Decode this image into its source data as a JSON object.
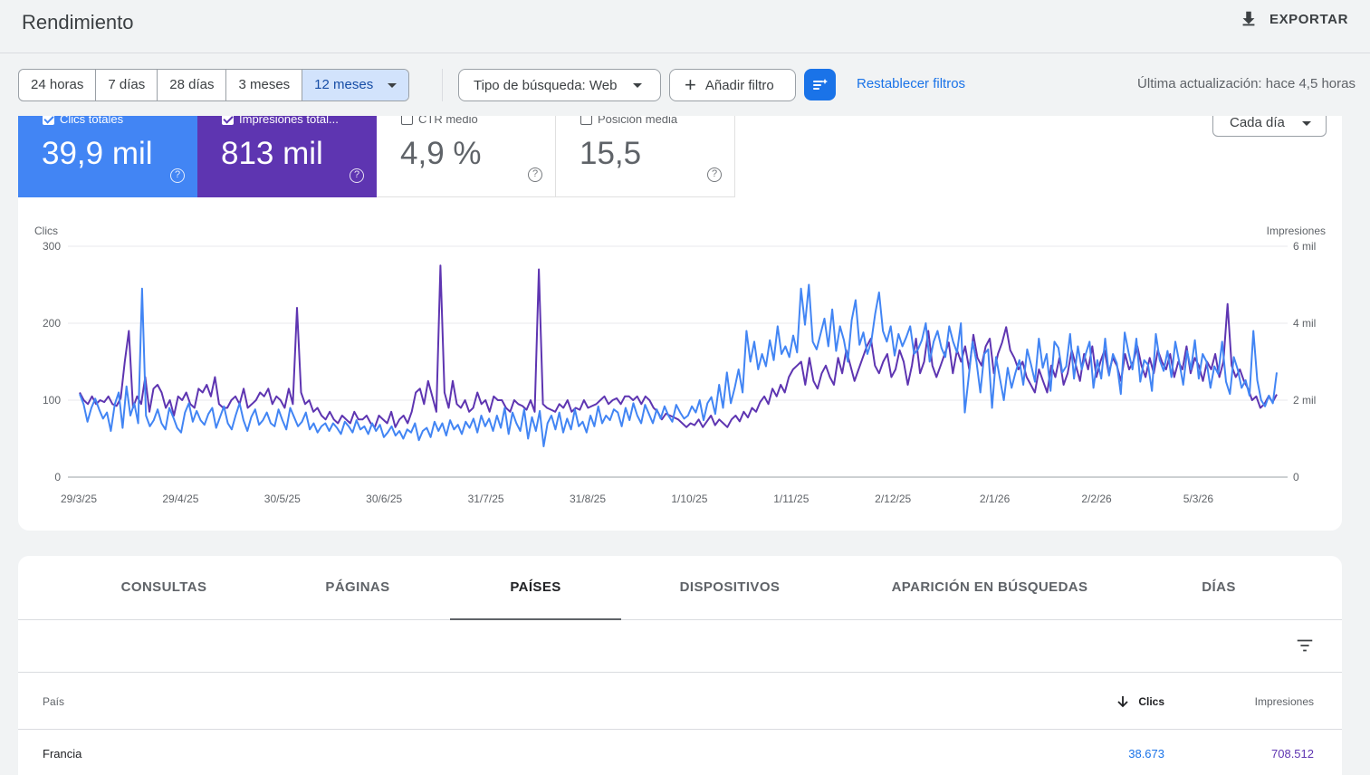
{
  "header": {
    "title": "Rendimiento",
    "export_label": "EXPORTAR"
  },
  "filters": {
    "date_ranges": [
      "24 horas",
      "7 días",
      "28 días",
      "3 meses",
      "12 meses"
    ],
    "active_range": "12 meses",
    "search_type": "Tipo de búsqueda: Web",
    "add_filter": "Añadir filtro",
    "reset": "Restablecer filtros",
    "last_update": "Última actualización: hace 4,5 horas"
  },
  "metrics": {
    "clicks": {
      "label": "Clics totales",
      "value": "39,9 mil",
      "checked": true,
      "color": "#4285f4"
    },
    "impressions": {
      "label": "Impresiones total...",
      "value": "813 mil",
      "checked": true,
      "color": "#5e35b1"
    },
    "ctr": {
      "label": "CTR medio",
      "value": "4,9 %",
      "checked": false
    },
    "position": {
      "label": "Posición media",
      "value": "15,5",
      "checked": false
    }
  },
  "period_select": "Cada día",
  "chart_data": {
    "type": "line",
    "ylabel": "Clics",
    "y2label": "Impresiones",
    "ylim": [
      0,
      300
    ],
    "y2lim": [
      0,
      6000
    ],
    "yticks": [
      "0",
      "100",
      "200",
      "300"
    ],
    "y2ticks": [
      "0",
      "2 mil",
      "4 mil",
      "6 mil"
    ],
    "xticks": [
      "29/3/25",
      "29/4/25",
      "30/5/25",
      "30/6/25",
      "31/7/25",
      "31/8/25",
      "1/10/25",
      "1/11/25",
      "2/12/25",
      "2/1/26",
      "2/2/26",
      "5/3/26"
    ],
    "grid": true,
    "series": [
      {
        "name": "Clics",
        "axis": "left",
        "color": "#4285f4",
        "values": [
          108,
          95,
          72,
          90,
          102,
          88,
          76,
          84,
          60,
          95,
          110,
          64,
          118,
          80,
          96,
          70,
          245,
          80,
          66,
          74,
          88,
          70,
          62,
          90,
          78,
          64,
          58,
          84,
          96,
          72,
          86,
          74,
          68,
          82,
          90,
          64,
          78,
          92,
          70,
          62,
          80,
          96,
          74,
          60,
          78,
          88,
          68,
          74,
          84,
          70,
          66,
          88,
          74,
          62,
          90,
          78,
          66,
          72,
          84,
          62,
          70,
          58,
          66,
          70,
          60,
          70,
          64,
          56,
          72,
          66,
          58,
          74,
          62,
          66,
          56,
          70,
          60,
          68,
          52,
          58,
          66,
          54,
          60,
          50,
          62,
          58,
          70,
          48,
          60,
          64,
          52,
          72,
          60,
          70,
          54,
          74,
          62,
          68,
          56,
          72,
          64,
          76,
          58,
          80,
          66,
          76,
          60,
          80,
          64,
          90,
          56,
          84,
          70,
          60,
          88,
          50,
          78,
          60,
          86,
          40,
          70,
          80,
          62,
          84,
          58,
          76,
          62,
          88,
          66,
          72,
          58,
          80,
          66,
          92,
          70,
          80,
          74,
          88,
          84,
          66,
          90,
          74,
          96,
          80,
          70,
          94,
          82,
          70,
          88,
          76,
          92,
          80,
          72,
          94,
          84,
          76,
          80,
          92,
          84,
          100,
          74,
          96,
          104,
          82,
          120,
          90,
          136,
          96,
          116,
          140,
          110,
          190,
          150,
          176,
          140,
          160,
          144,
          178,
          152,
          196,
          160,
          170,
          156,
          184,
          162,
          245,
          198,
          250,
          176,
          166,
          186,
          206,
          170,
          218,
          164,
          196,
          178,
          150,
          204,
          230,
          172,
          188,
          160,
          176,
          212,
          240,
          190,
          176,
          196,
          158,
          186,
          170,
          182,
          196,
          160,
          166,
          178,
          200,
          150,
          176,
          190,
          168,
          156,
          196,
          176,
          162,
          200,
          84,
          130,
          176,
          150,
          110,
          160,
          166,
          90,
          156,
          128,
          100,
          142,
          116,
          136,
          152,
          120,
          166,
          146,
          124,
          180,
          142,
          160,
          112,
          176,
          168,
          136,
          144,
          186,
          128,
          170,
          140,
          160,
          176,
          116,
          152,
          128,
          180,
          132,
          160,
          148,
          108,
          188,
          162,
          140,
          180,
          124,
          152,
          146,
          112,
          186,
          152,
          138,
          164,
          130,
          176,
          150,
          120,
          164,
          140,
          178,
          128,
          160,
          150,
          116,
          144,
          134,
          176,
          124,
          108,
          156,
          140,
          116,
          126,
          106,
          190,
          126,
          100,
          92,
          106,
          96,
          136
        ]
      },
      {
        "name": "Impresiones",
        "axis": "right",
        "color": "#5e35b1",
        "values": [
          2200,
          2000,
          1900,
          2100,
          1900,
          2000,
          1950,
          2100,
          1900,
          1850,
          2050,
          3000,
          3800,
          1800,
          2100,
          1900,
          2600,
          1700,
          2300,
          2400,
          2200,
          1800,
          2000,
          1600,
          2100,
          2000,
          2200,
          1900,
          1800,
          2300,
          2200,
          2400,
          2100,
          2600,
          1900,
          1800,
          1800,
          2000,
          2100,
          1900,
          2300,
          1800,
          1900,
          2000,
          2200,
          2100,
          2300,
          1900,
          2100,
          2000,
          1800,
          2300,
          1900,
          4400,
          2200,
          1900,
          2000,
          1700,
          1800,
          1600,
          1500,
          1700,
          1500,
          1400,
          1600,
          1500,
          1400,
          1700,
          1500,
          1500,
          1600,
          1400,
          1300,
          1600,
          1500,
          1400,
          1700,
          1300,
          1500,
          1600,
          1400,
          1700,
          2200,
          2300,
          1900,
          2500,
          2100,
          1700,
          5500,
          2200,
          1800,
          2500,
          1900,
          1800,
          2000,
          1700,
          1800,
          2200,
          1900,
          2000,
          1700,
          2100,
          2000,
          2000,
          1800,
          1700,
          2000,
          1900,
          1850,
          1750,
          2000,
          1700,
          5400,
          1900,
          1800,
          1750,
          1700,
          1900,
          1800,
          2000,
          1700,
          1800,
          1750,
          2000,
          1800,
          1850,
          1900,
          2000,
          2100,
          1900,
          2000,
          2050,
          1900,
          2100,
          2100,
          2000,
          2100,
          1900,
          2100,
          2000,
          1800,
          1700,
          1500,
          1650,
          1600,
          1550,
          1500,
          1400,
          1300,
          1400,
          1350,
          1500,
          1300,
          1450,
          1600,
          1350,
          1500,
          1400,
          1300,
          1500,
          1600,
          1450,
          1700,
          1550,
          1800,
          1700,
          1950,
          2100,
          1900,
          2300,
          2100,
          2400,
          2200,
          2600,
          2800,
          2900,
          3000,
          2400,
          3100,
          2500,
          2300,
          2700,
          2900,
          2600,
          2400,
          3100,
          2700,
          3300,
          2900,
          2500,
          2800,
          3100,
          3400,
          3600,
          2900,
          2700,
          3000,
          3200,
          2600,
          2800,
          3300,
          3000,
          2400,
          2900,
          3600,
          2700,
          3000,
          3800,
          2900,
          2600,
          2900,
          3200,
          3500,
          2700,
          3300,
          3000,
          3400,
          2800,
          3700,
          3100,
          2900,
          3400,
          3600,
          2700,
          3200,
          3500,
          3900,
          3300,
          3100,
          2800,
          3000,
          2600,
          2400,
          2200,
          2800,
          2500,
          2200,
          2900,
          2600,
          3100,
          2400,
          2700,
          3300,
          2900,
          2500,
          3200,
          2800,
          3400,
          2600,
          3000,
          3300,
          2700,
          3100,
          2900,
          2500,
          3200,
          2800,
          3000,
          3400,
          2900,
          2600,
          3100,
          2700,
          3300,
          3000,
          2800,
          3200,
          2600,
          3000,
          2800,
          3400,
          2700,
          3100,
          2900,
          2500,
          3000,
          2800,
          3200,
          2600,
          3000,
          4500,
          2900,
          2600,
          2800,
          2500,
          2300,
          2000,
          2100,
          1800,
          1900,
          2100,
          1950,
          2150
        ]
      }
    ]
  },
  "tabs": [
    "CONSULTAS",
    "PÁGINAS",
    "PAÍSES",
    "DISPOSITIVOS",
    "APARICIÓN EN BÚSQUEDAS",
    "DÍAS"
  ],
  "active_tab": "PAÍSES",
  "table": {
    "columns": {
      "country": "País",
      "clicks": "Clics",
      "impressions": "Impresiones"
    },
    "rows": [
      {
        "country": "Francia",
        "clicks": "38.673",
        "impressions": "708.512"
      }
    ]
  },
  "icons": {
    "export": "download-icon",
    "add": "plus-icon",
    "filter": "filter-settings-icon",
    "sort": "sort-filter-icon",
    "sort_direction": "arrow-down-icon",
    "help": "help-icon"
  }
}
